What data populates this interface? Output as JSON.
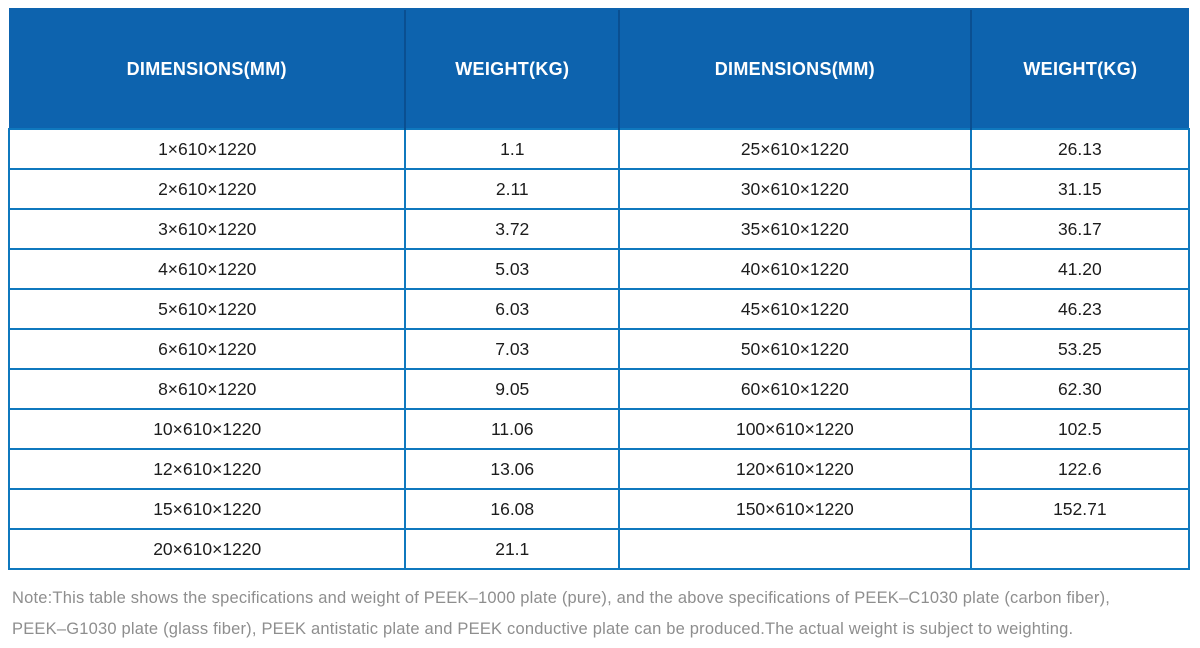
{
  "table": {
    "headers": [
      "DIMENSIONS(MM)",
      "WEIGHT(KG)",
      "DIMENSIONS(MM)",
      "WEIGHT(KG)"
    ],
    "rows": [
      [
        "1×610×1220",
        "1.1",
        "25×610×1220",
        "26.13"
      ],
      [
        "2×610×1220",
        "2.11",
        "30×610×1220",
        "31.15"
      ],
      [
        "3×610×1220",
        "3.72",
        "35×610×1220",
        "36.17"
      ],
      [
        "4×610×1220",
        "5.03",
        "40×610×1220",
        "41.20"
      ],
      [
        "5×610×1220",
        "6.03",
        "45×610×1220",
        "46.23"
      ],
      [
        "6×610×1220",
        "7.03",
        "50×610×1220",
        "53.25"
      ],
      [
        "8×610×1220",
        "9.05",
        "60×610×1220",
        "62.30"
      ],
      [
        "10×610×1220",
        "11.06",
        "100×610×1220",
        "102.5"
      ],
      [
        "12×610×1220",
        "13.06",
        "120×610×1220",
        "122.6"
      ],
      [
        "15×610×1220",
        "16.08",
        "150×610×1220",
        "152.71"
      ],
      [
        "20×610×1220",
        "21.1",
        "",
        ""
      ]
    ]
  },
  "note": {
    "line1": "Note:This table shows the specifications and weight of PEEK–1000 plate (pure), and the above specifications of PEEK–C1030 plate (carbon fiber),",
    "line2": "PEEK–G1030 plate (glass fiber), PEEK antistatic plate and PEEK conductive plate can be produced.The actual weight is subject to weighting."
  },
  "colors": {
    "header_bg": "#0d63ae",
    "header_divider": "#0a4f91",
    "border": "#0f78be",
    "body_text": "#1c1c1c",
    "note_text": "#8e8e8e"
  }
}
